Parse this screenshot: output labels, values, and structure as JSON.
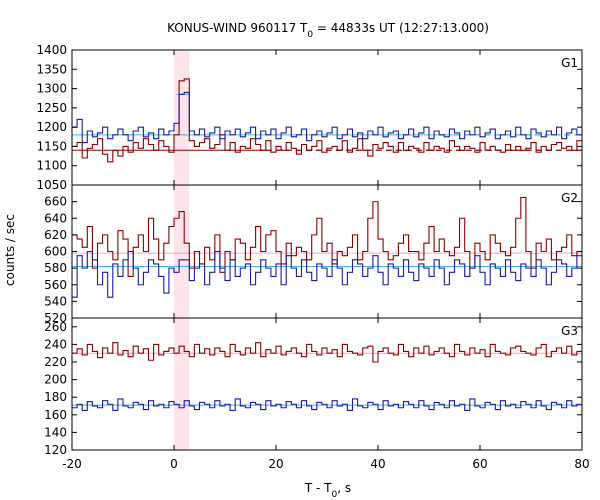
{
  "chart_data": {
    "type": "line",
    "title_main": "KONUS-WIND 960117 T",
    "title_sub": "0",
    "title_rest": " = 44833s UT (12:27:13.000)",
    "xlabel_main": "T - T",
    "xlabel_sub": "0",
    "xlabel_rest": ", s",
    "ylabel": "counts / sec",
    "xlim": [
      -20,
      80
    ],
    "xticks": [
      -20,
      0,
      20,
      40,
      60,
      80
    ],
    "highlight_region": [
      0,
      3
    ],
    "colors": {
      "red": "#8b0000",
      "blue": "#1a1aa6",
      "light_blue": "#3db3e6",
      "pink": "#ff99cc",
      "highlight": "#fde3ea"
    },
    "panels": [
      {
        "label": "G1",
        "ylim": [
          1050,
          1400
        ],
        "yticks": [
          1050,
          1100,
          1150,
          1200,
          1250,
          1300,
          1350,
          1400
        ],
        "series": [
          {
            "color_key": "red",
            "x0": -20,
            "dx": 1,
            "values": [
              1150,
              1160,
              1120,
              1145,
              1155,
              1170,
              1130,
              1110,
              1140,
              1125,
              1150,
              1135,
              1160,
              1145,
              1170,
              1155,
              1140,
              1165,
              1150,
              1135,
              1180,
              1320,
              1325,
              1165,
              1150,
              1160,
              1170,
              1145,
              1155,
              1180,
              1140,
              1160,
              1135,
              1150,
              1145,
              1170,
              1155,
              1140,
              1165,
              1135,
              1150,
              1140,
              1160,
              1145,
              1130,
              1155,
              1140,
              1150,
              1165,
              1135,
              1145,
              1150,
              1140,
              1165,
              1135,
              1145,
              1170,
              1140,
              1125,
              1155,
              1145,
              1160,
              1150,
              1135,
              1160,
              1140,
              1150,
              1145,
              1135,
              1160,
              1140,
              1150,
              1145,
              1135,
              1165,
              1150,
              1140,
              1150,
              1145,
              1135,
              1160,
              1140,
              1150,
              1140,
              1135,
              1155,
              1140,
              1150,
              1140,
              1145,
              1160,
              1135,
              1150,
              1140,
              1155,
              1160,
              1145,
              1150,
              1140,
              1165
            ]
          },
          {
            "color_key": "blue",
            "x0": -20,
            "dx": 1,
            "values": [
              1200,
              1220,
              1160,
              1190,
              1175,
              1185,
              1200,
              1170,
              1180,
              1195,
              1180,
              1165,
              1190,
              1200,
              1175,
              1185,
              1170,
              1195,
              1180,
              1190,
              1210,
              1285,
              1290,
              1190,
              1180,
              1195,
              1175,
              1185,
              1200,
              1170,
              1190,
              1180,
              1195,
              1175,
              1185,
              1200,
              1170,
              1190,
              1180,
              1195,
              1170,
              1185,
              1200,
              1175,
              1180,
              1195,
              1165,
              1180,
              1190,
              1175,
              1185,
              1200,
              1170,
              1180,
              1195,
              1175,
              1185,
              1170,
              1190,
              1180,
              1200,
              1175,
              1185,
              1190,
              1170,
              1180,
              1195,
              1175,
              1185,
              1200,
              1170,
              1190,
              1180,
              1175,
              1195,
              1185,
              1170,
              1190,
              1180,
              1200,
              1175,
              1185,
              1195,
              1170,
              1180,
              1190,
              1175,
              1200,
              1180,
              1170,
              1195,
              1185,
              1175,
              1190,
              1180,
              1200,
              1170,
              1185,
              1195,
              1180
            ]
          }
        ],
        "baselines": [
          {
            "color_key": "red",
            "value": 1140,
            "dashed_from": 18
          },
          {
            "color_key": "light_blue",
            "value": 1180,
            "dashed_from": 55
          },
          {
            "color_key": "light_blue",
            "value": 1285,
            "from": 0.5,
            "to": 3.0
          }
        ]
      },
      {
        "label": "G2",
        "ylim": [
          520,
          680
        ],
        "yticks": [
          520,
          540,
          560,
          580,
          600,
          620,
          640,
          660
        ],
        "series": [
          {
            "color_key": "red",
            "x0": -20,
            "dx": 1,
            "values": [
              620,
              615,
              605,
              630,
              580,
              610,
              620,
              600,
              590,
              625,
              615,
              570,
              605,
              620,
              600,
              640,
              615,
              590,
              610,
              630,
              640,
              648,
              610,
              580,
              600,
              585,
              605,
              590,
              620,
              575,
              600,
              590,
              615,
              610,
              590,
              605,
              630,
              600,
              620,
              625,
              600,
              585,
              610,
              595,
              605,
              600,
              590,
              620,
              640,
              600,
              610,
              585,
              600,
              595,
              605,
              620,
              590,
              600,
              640,
              660,
              615,
              600,
              590,
              595,
              610,
              620,
              600,
              600,
              590,
              610,
              630,
              600,
              615,
              600,
              595,
              605,
              640,
              600,
              580,
              610,
              600,
              590,
              620,
              610,
              600,
              595,
              605,
              640,
              665,
              600,
              580,
              610,
              600,
              615,
              590,
              600,
              605,
              620,
              595,
              600
            ]
          },
          {
            "color_key": "blue",
            "x0": -20,
            "dx": 1,
            "values": [
              545,
              595,
              580,
              600,
              590,
              560,
              575,
              545,
              585,
              570,
              590,
              600,
              580,
              560,
              575,
              590,
              585,
              570,
              550,
              580,
              575,
              590,
              590,
              565,
              580,
              585,
              560,
              575,
              600,
              580,
              565,
              590,
              570,
              580,
              585,
              560,
              575,
              590,
              580,
              570,
              585,
              560,
              595,
              580,
              570,
              590,
              575,
              565,
              585,
              580,
              570,
              590,
              580,
              560,
              575,
              590,
              585,
              570,
              580,
              595,
              575,
              560,
              585,
              580,
              570,
              590,
              575,
              565,
              585,
              580,
              570,
              590,
              580,
              560,
              575,
              590,
              585,
              570,
              580,
              595,
              575,
              560,
              585,
              580,
              570,
              590,
              575,
              565,
              585,
              580,
              570,
              590,
              580,
              560,
              575,
              590,
              585,
              570,
              580,
              595
            ]
          }
        ],
        "baselines": [
          {
            "color_key": "pink",
            "value": 598
          },
          {
            "color_key": "light_blue",
            "value": 582
          }
        ]
      },
      {
        "label": "G3",
        "ylim": [
          120,
          270
        ],
        "yticks": [
          120,
          140,
          160,
          180,
          200,
          220,
          240,
          260
        ],
        "series": [
          {
            "color_key": "red",
            "x0": -20,
            "dx": 1,
            "values": [
              230,
              235,
              228,
              240,
              232,
              225,
              236,
              230,
              242,
              228,
              233,
              226,
              238,
              230,
              235,
              222,
              240,
              228,
              232,
              236,
              230,
              238,
              232,
              226,
              240,
              230,
              235,
              228,
              236,
              232,
              226,
              240,
              232,
              228,
              236,
              230,
              242,
              226,
              234,
              230,
              238,
              228,
              232,
              236,
              230,
              226,
              240,
              232,
              228,
              236,
              230,
              234,
              226,
              240,
              232,
              230,
              228,
              236,
              238,
              220,
              232,
              236,
              230,
              228,
              240,
              232,
              226,
              236,
              230,
              238,
              228,
              232,
              236,
              230,
              226,
              240,
              232,
              228,
              236,
              230,
              234,
              226,
              240,
              232,
              230,
              228,
              236,
              238,
              232,
              230,
              228,
              236,
              240,
              226,
              232,
              236,
              230,
              238,
              228,
              232
            ]
          },
          {
            "color_key": "blue",
            "x0": -20,
            "dx": 1,
            "values": [
              168,
              172,
              165,
              175,
              170,
              168,
              176,
              172,
              165,
              178,
              170,
              168,
              174,
              172,
              166,
              176,
              170,
              172,
              168,
              175,
              172,
              168,
              176,
              170,
              166,
              174,
              172,
              168,
              176,
              170,
              172,
              165,
              178,
              170,
              168,
              174,
              172,
              166,
              176,
              170,
              172,
              168,
              175,
              172,
              168,
              176,
              170,
              166,
              174,
              172,
              168,
              176,
              170,
              172,
              165,
              178,
              170,
              168,
              174,
              172,
              166,
              176,
              170,
              172,
              168,
              175,
              172,
              168,
              176,
              170,
              166,
              174,
              172,
              168,
              176,
              170,
              172,
              165,
              178,
              170,
              168,
              174,
              172,
              166,
              176,
              170,
              172,
              168,
              175,
              172,
              168,
              176,
              170,
              166,
              174,
              172,
              168,
              176,
              170,
              172
            ]
          }
        ],
        "baselines": [
          {
            "color_key": "pink",
            "value": 230
          },
          {
            "color_key": "light_blue",
            "value": 171
          }
        ]
      }
    ]
  }
}
